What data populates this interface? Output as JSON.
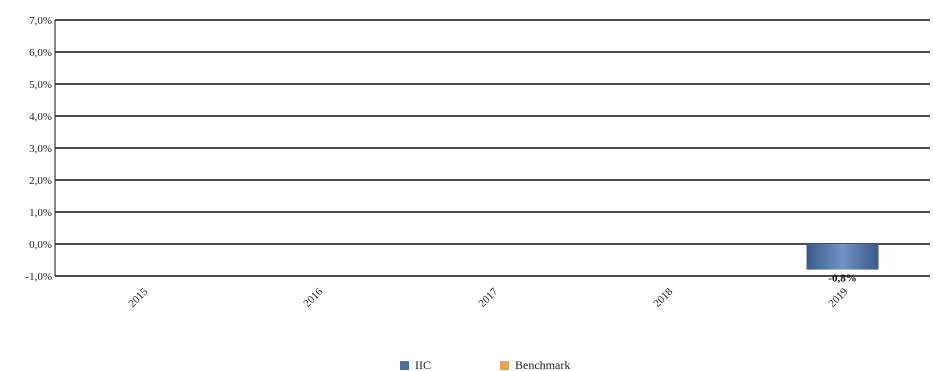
{
  "chart_data": {
    "type": "bar",
    "categories": [
      "2015",
      "2016",
      "2017",
      "2018",
      "2019"
    ],
    "series": [
      {
        "name": "IIC",
        "color": "#4a6fa5",
        "values": [
          null,
          null,
          null,
          null,
          -0.8
        ]
      },
      {
        "name": "Benchmark",
        "color": "#e8a14f",
        "values": [
          null,
          null,
          null,
          null,
          null
        ]
      }
    ],
    "data_labels": [
      null,
      null,
      null,
      null,
      "-0,8%"
    ],
    "yticks": [
      "7,0%",
      "6,0%",
      "5,0%",
      "4,0%",
      "3,0%",
      "2,0%",
      "1,0%",
      "0,0%",
      "-1,0%"
    ],
    "ylim": [
      -1,
      7
    ],
    "grid": true,
    "legend_position": "bottom-center"
  }
}
